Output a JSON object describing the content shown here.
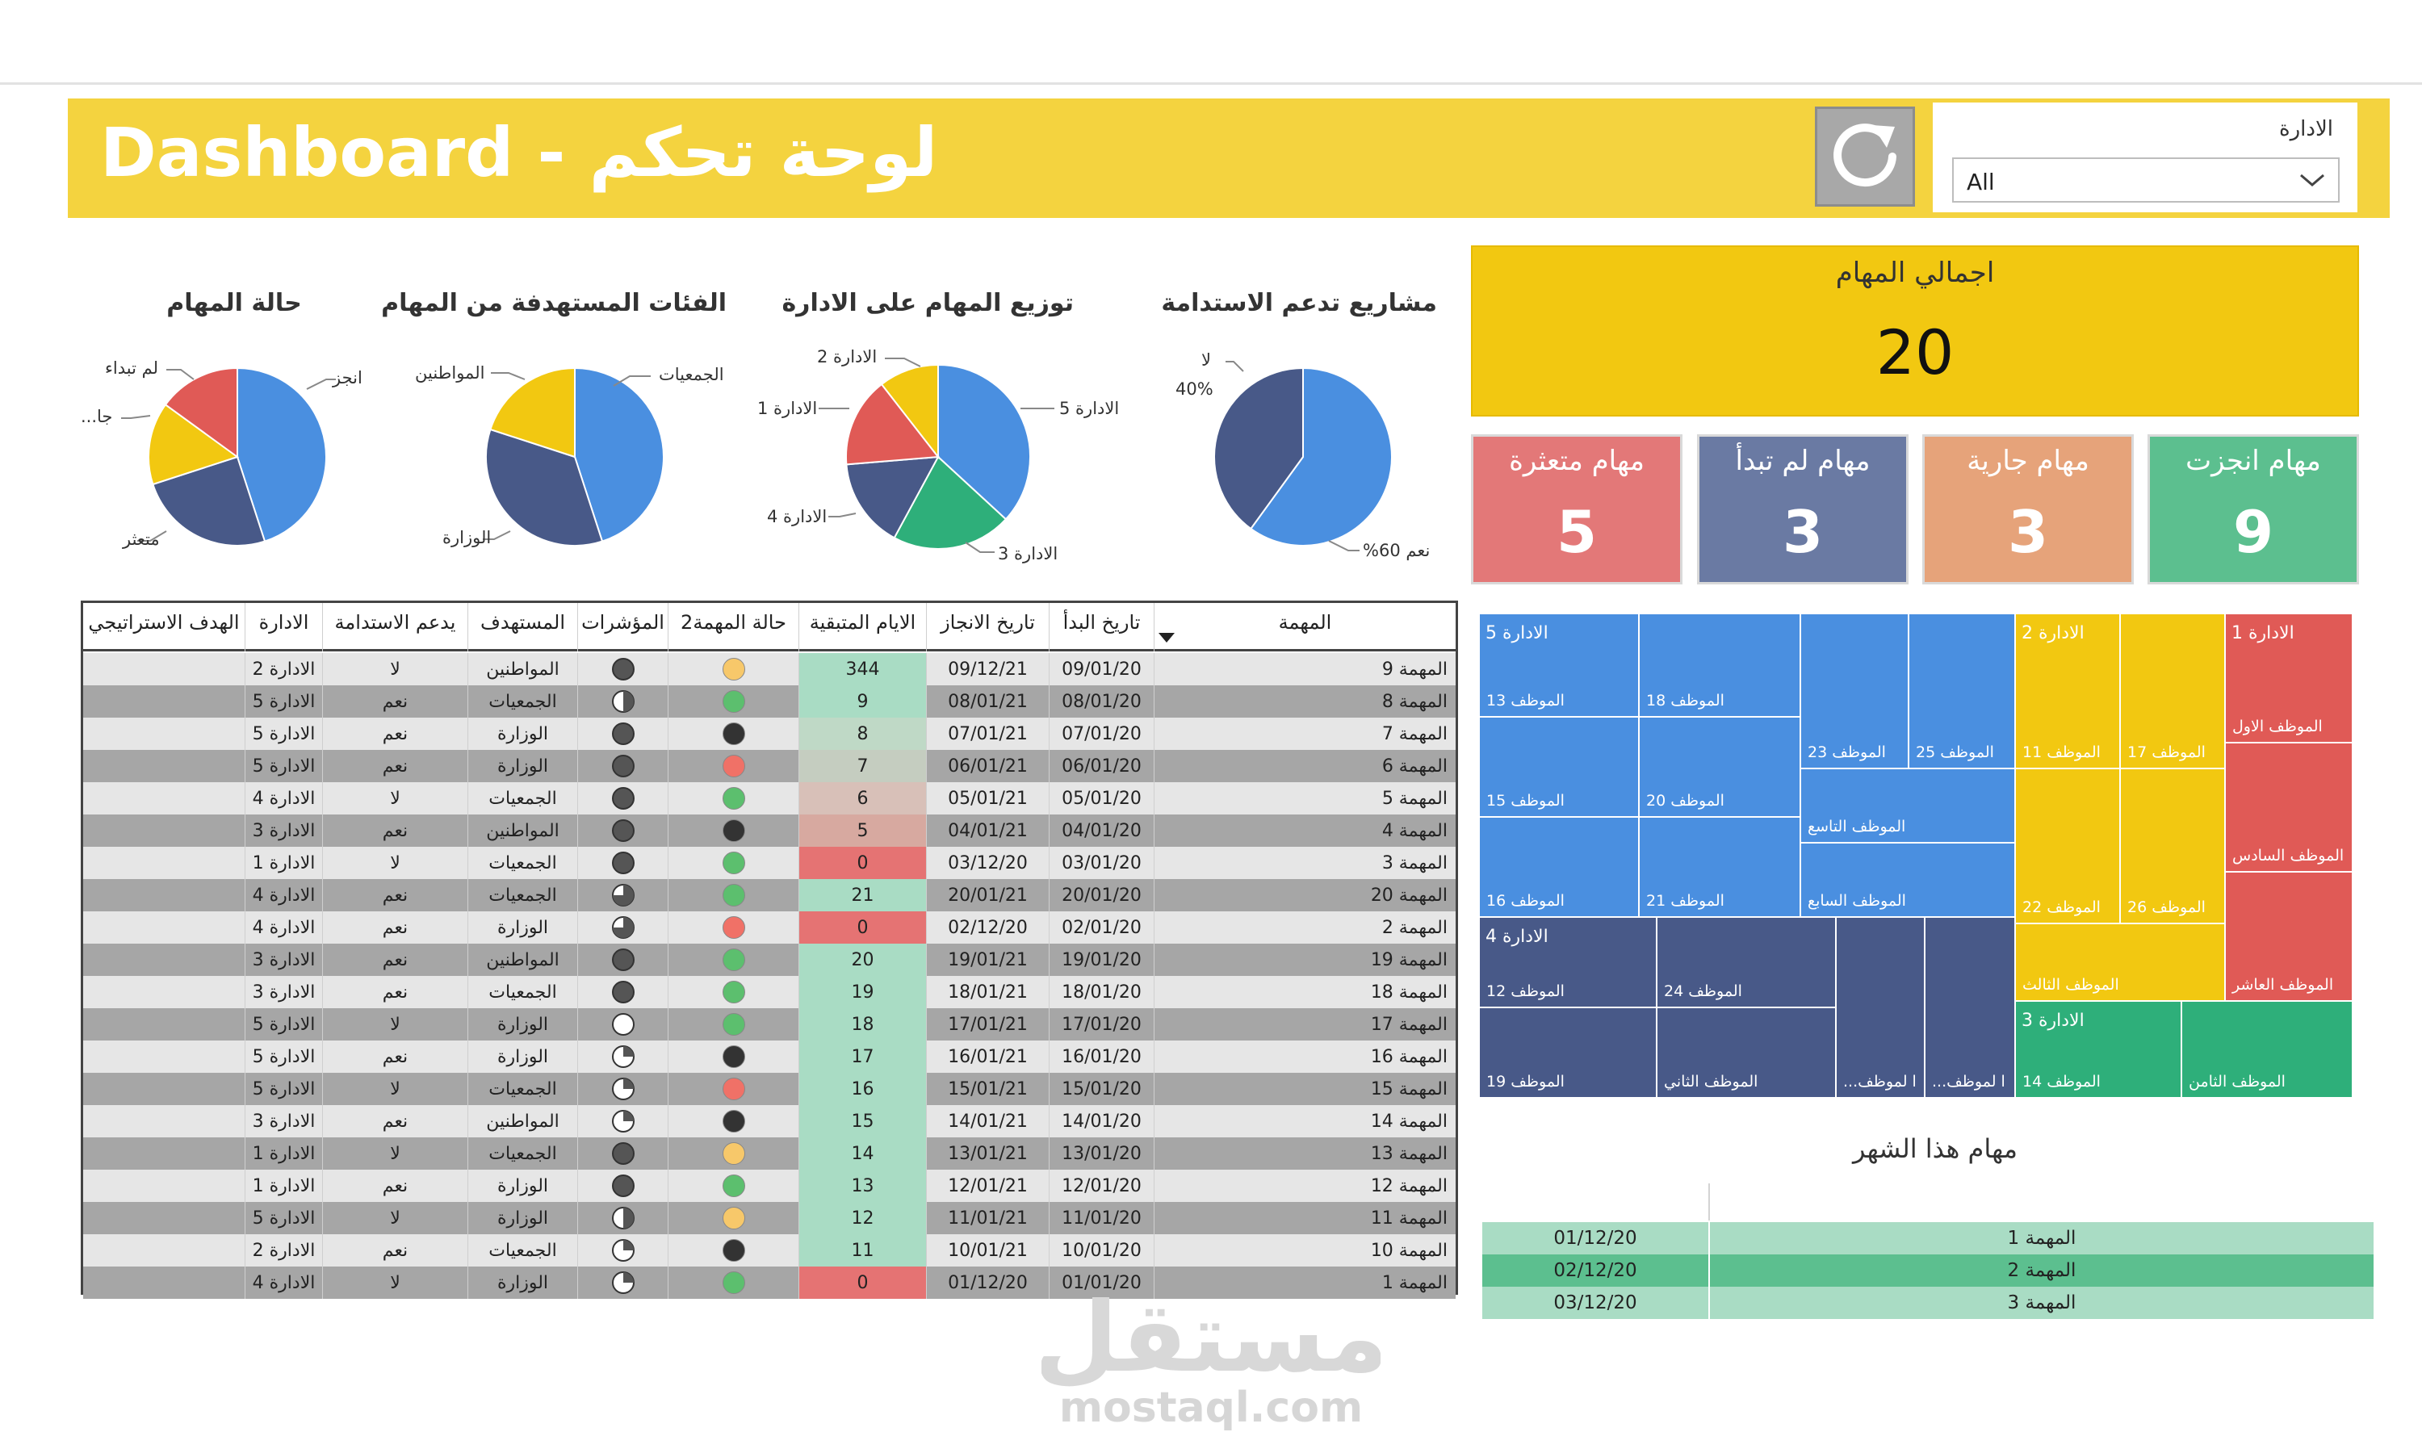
{
  "header": {
    "title": "Dashboard - لوحة تحكم",
    "slicer_label": "الادارة",
    "slicer_value": "All"
  },
  "pies": {
    "status": {
      "title": "حالة المهام",
      "labels": {
        "done": "انجز",
        "not_started": "لم تبداء",
        "running": "جا...",
        "late": "متعثر"
      }
    },
    "categories": {
      "title": "الفئات المستهدفة من المهام",
      "labels": {
        "assoc": "الجمعيات",
        "citizens": "المواطنين",
        "ministry": "الوزارة"
      }
    },
    "departments": {
      "title": "توزيع المهام على الادارة",
      "labels": {
        "d5": "الادارة 5",
        "d2": "الادارة 2",
        "d1": "الادارة 1",
        "d4": "الادارة 4",
        "d3": "الادارة 3"
      }
    },
    "sustainability": {
      "title": "مشاريع تدعم الاستدامة",
      "labels": {
        "no": "لا",
        "no_pct": "40%",
        "yes": "نعم 60%"
      }
    }
  },
  "chart_data": [
    {
      "type": "pie",
      "title": "حالة المهام",
      "categories": [
        "انجز",
        "متعثر",
        "جا...",
        "لم تبداء"
      ],
      "values": [
        9,
        5,
        3,
        3
      ],
      "colors": [
        "#4a8fe0",
        "#485988",
        "#f2c811",
        "#e05a56"
      ]
    },
    {
      "type": "pie",
      "title": "الفئات المستهدفة من المهام",
      "categories": [
        "الجمعيات",
        "الوزارة",
        "المواطنين"
      ],
      "values": [
        9,
        7,
        4
      ],
      "colors": [
        "#4a8fe0",
        "#485988",
        "#f2c811"
      ]
    },
    {
      "type": "pie",
      "title": "توزيع المهام على الادارة",
      "categories": [
        "الادارة 5",
        "الادارة 3",
        "الادارة 4",
        "الادارة 1",
        "الادارة 2"
      ],
      "values": [
        7,
        4,
        3,
        3,
        2
      ],
      "colors": [
        "#4a8fe0",
        "#2eaf7a",
        "#485988",
        "#e05a56",
        "#f2c811"
      ]
    },
    {
      "type": "pie",
      "title": "مشاريع تدعم الاستدامة",
      "categories": [
        "نعم",
        "لا"
      ],
      "values": [
        60,
        40
      ],
      "colors": [
        "#4a8fe0",
        "#485988"
      ]
    }
  ],
  "kpis": {
    "total_label": "اجمالي المهام",
    "total_value": "20",
    "cards": [
      {
        "label": "مهام انجزت",
        "value": "9",
        "color": "#5cbf8f"
      },
      {
        "label": "مهام جارية",
        "value": "3",
        "color": "#e6a37a"
      },
      {
        "label": "مهام لم تبدأ",
        "value": "3",
        "color": "#6a7aa3"
      },
      {
        "label": "مهام متعثرة",
        "value": "5",
        "color": "#e37878"
      }
    ]
  },
  "table": {
    "headers": {
      "task": "المهمة",
      "start": "تاريخ البدأ",
      "end": "تاريخ الانجاز",
      "remaining": "الايام المتبقية",
      "status2": "حالة المهمة2",
      "indicators": "المؤشرات",
      "target": "المستهدف",
      "sustain": "يدعم الاستدامة",
      "dept": "الادارة",
      "goal": "الهدف الاستراتيجي"
    },
    "rows": [
      {
        "task": "المهمة 9",
        "start": "09/01/20",
        "end": "09/12/21",
        "remaining": "344",
        "rem_color": "#a9dcc4",
        "status": "#f7c86a",
        "indicator": "full",
        "target": "المواطنين",
        "sustain": "لا",
        "dept": "الادارة 2"
      },
      {
        "task": "المهمة 8",
        "start": "08/01/20",
        "end": "08/01/21",
        "remaining": "9",
        "rem_color": "#a9dcc4",
        "status": "#5cbf6e",
        "indicator": "half",
        "target": "الجمعيات",
        "sustain": "نعم",
        "dept": "الادارة 5"
      },
      {
        "task": "المهمة 7",
        "start": "07/01/20",
        "end": "07/01/21",
        "remaining": "8",
        "rem_color": "#bfd9c6",
        "status": "#333333",
        "indicator": "full",
        "target": "الوزارة",
        "sustain": "نعم",
        "dept": "الادارة 5"
      },
      {
        "task": "المهمة 6",
        "start": "06/01/20",
        "end": "06/01/21",
        "remaining": "7",
        "rem_color": "#c5cdc0",
        "status": "#f07167",
        "indicator": "full",
        "target": "الوزارة",
        "sustain": "نعم",
        "dept": "الادارة 5"
      },
      {
        "task": "المهمة 5",
        "start": "05/01/20",
        "end": "05/01/21",
        "remaining": "6",
        "rem_color": "#d8c0b8",
        "status": "#5cbf6e",
        "indicator": "full",
        "target": "الجمعيات",
        "sustain": "لا",
        "dept": "الادارة 4"
      },
      {
        "task": "المهمة 4",
        "start": "04/01/20",
        "end": "04/01/21",
        "remaining": "5",
        "rem_color": "#d7a9a0",
        "status": "#333333",
        "indicator": "full",
        "target": "المواطنين",
        "sustain": "نعم",
        "dept": "الادارة 3"
      },
      {
        "task": "المهمة 3",
        "start": "03/01/20",
        "end": "03/12/20",
        "remaining": "0",
        "rem_color": "#e57373",
        "status": "#5cbf6e",
        "indicator": "full",
        "target": "الجمعيات",
        "sustain": "لا",
        "dept": "الادارة 1"
      },
      {
        "task": "المهمة 20",
        "start": "20/01/20",
        "end": "20/01/21",
        "remaining": "21",
        "rem_color": "#a9dcc4",
        "status": "#5cbf6e",
        "indicator": "three",
        "target": "الجمعيات",
        "sustain": "نعم",
        "dept": "الادارة 4"
      },
      {
        "task": "المهمة 2",
        "start": "02/01/20",
        "end": "02/12/20",
        "remaining": "0",
        "rem_color": "#e57373",
        "status": "#f07167",
        "indicator": "three",
        "target": "الوزارة",
        "sustain": "نعم",
        "dept": "الادارة 4"
      },
      {
        "task": "المهمة 19",
        "start": "19/01/20",
        "end": "19/01/21",
        "remaining": "20",
        "rem_color": "#a9dcc4",
        "status": "#5cbf6e",
        "indicator": "full",
        "target": "المواطنين",
        "sustain": "نعم",
        "dept": "الادارة 3"
      },
      {
        "task": "المهمة 18",
        "start": "18/01/20",
        "end": "18/01/21",
        "remaining": "19",
        "rem_color": "#a9dcc4",
        "status": "#5cbf6e",
        "indicator": "full",
        "target": "الجمعيات",
        "sustain": "نعم",
        "dept": "الادارة 3"
      },
      {
        "task": "المهمة 17",
        "start": "17/01/20",
        "end": "17/01/21",
        "remaining": "18",
        "rem_color": "#a9dcc4",
        "status": "#5cbf6e",
        "indicator": "empty",
        "target": "الوزارة",
        "sustain": "لا",
        "dept": "الادارة 5"
      },
      {
        "task": "المهمة 16",
        "start": "16/01/20",
        "end": "16/01/21",
        "remaining": "17",
        "rem_color": "#a9dcc4",
        "status": "#333333",
        "indicator": "quarter",
        "target": "الوزارة",
        "sustain": "نعم",
        "dept": "الادارة 5"
      },
      {
        "task": "المهمة 15",
        "start": "15/01/20",
        "end": "15/01/21",
        "remaining": "16",
        "rem_color": "#a9dcc4",
        "status": "#f07167",
        "indicator": "quarter",
        "target": "الجمعيات",
        "sustain": "لا",
        "dept": "الادارة 5"
      },
      {
        "task": "المهمة 14",
        "start": "14/01/20",
        "end": "14/01/21",
        "remaining": "15",
        "rem_color": "#a9dcc4",
        "status": "#333333",
        "indicator": "quarter",
        "target": "المواطنين",
        "sustain": "نعم",
        "dept": "الادارة 3"
      },
      {
        "task": "المهمة 13",
        "start": "13/01/20",
        "end": "13/01/21",
        "remaining": "14",
        "rem_color": "#a9dcc4",
        "status": "#f7c86a",
        "indicator": "full",
        "target": "الجمعيات",
        "sustain": "لا",
        "dept": "الادارة 1"
      },
      {
        "task": "المهمة 12",
        "start": "12/01/20",
        "end": "12/01/21",
        "remaining": "13",
        "rem_color": "#a9dcc4",
        "status": "#5cbf6e",
        "indicator": "full",
        "target": "الوزارة",
        "sustain": "نعم",
        "dept": "الادارة 1"
      },
      {
        "task": "المهمة 11",
        "start": "11/01/20",
        "end": "11/01/21",
        "remaining": "12",
        "rem_color": "#a9dcc4",
        "status": "#f7c86a",
        "indicator": "half",
        "target": "الوزارة",
        "sustain": "لا",
        "dept": "الادارة 5"
      },
      {
        "task": "المهمة 10",
        "start": "10/01/20",
        "end": "10/01/21",
        "remaining": "11",
        "rem_color": "#a9dcc4",
        "status": "#333333",
        "indicator": "quarter",
        "target": "الجمعيات",
        "sustain": "نعم",
        "dept": "الادارة 2"
      },
      {
        "task": "المهمة 1",
        "start": "01/01/20",
        "end": "01/12/20",
        "remaining": "0",
        "rem_color": "#e57373",
        "status": "#5cbf6e",
        "indicator": "quarter",
        "target": "الوزارة",
        "sustain": "لا",
        "dept": "الادارة 4"
      }
    ]
  },
  "treemap": {
    "colors": {
      "d5": "#4a8fe0",
      "d4": "#485988",
      "d2": "#f2c811",
      "d1": "#e05a56",
      "d3": "#2eaf7a"
    },
    "d5": {
      "label": "الادارة 5",
      "cells": [
        "الموظف 13",
        "الموظف 18",
        "الموظف 23",
        "الموظف 25",
        "الموظف 15",
        "الموظف 20",
        "الموظف التاسع",
        "الموظف 16",
        "الموظف 21",
        "الموظف السابع"
      ]
    },
    "d4": {
      "label": "الادارة 4",
      "cells": [
        "الموظف 12",
        "الموظف 24",
        "الموظف 19",
        "الموظف الثاني",
        "ا لموظف...",
        "ا لموظف..."
      ]
    },
    "d2": {
      "label": "الادارة 2",
      "cells": [
        "الموظف 11",
        "الموظف 17",
        "الموظف 22",
        "الموظف 26",
        "الموظف الثالث"
      ]
    },
    "d1": {
      "label": "الادارة 1",
      "cells": [
        "الموظف الاول",
        "الموظف السادس",
        "الموظف العاشر"
      ]
    },
    "d3": {
      "label": "الادارة 3",
      "cells": [
        "الموظف 14",
        "الموظف الثامن"
      ]
    }
  },
  "month": {
    "title": "مهام هذا الشهر",
    "rows": [
      {
        "date": "01/12/20",
        "task": "المهمة 1",
        "color": "#a9dcc4"
      },
      {
        "date": "02/12/20",
        "task": "المهمة 2",
        "color": "#5cbf8f"
      },
      {
        "date": "03/12/20",
        "task": "المهمة 3",
        "color": "#a9dcc4"
      }
    ]
  },
  "watermark": {
    "arabic": "مستقل",
    "latin": "mostaql.com"
  }
}
